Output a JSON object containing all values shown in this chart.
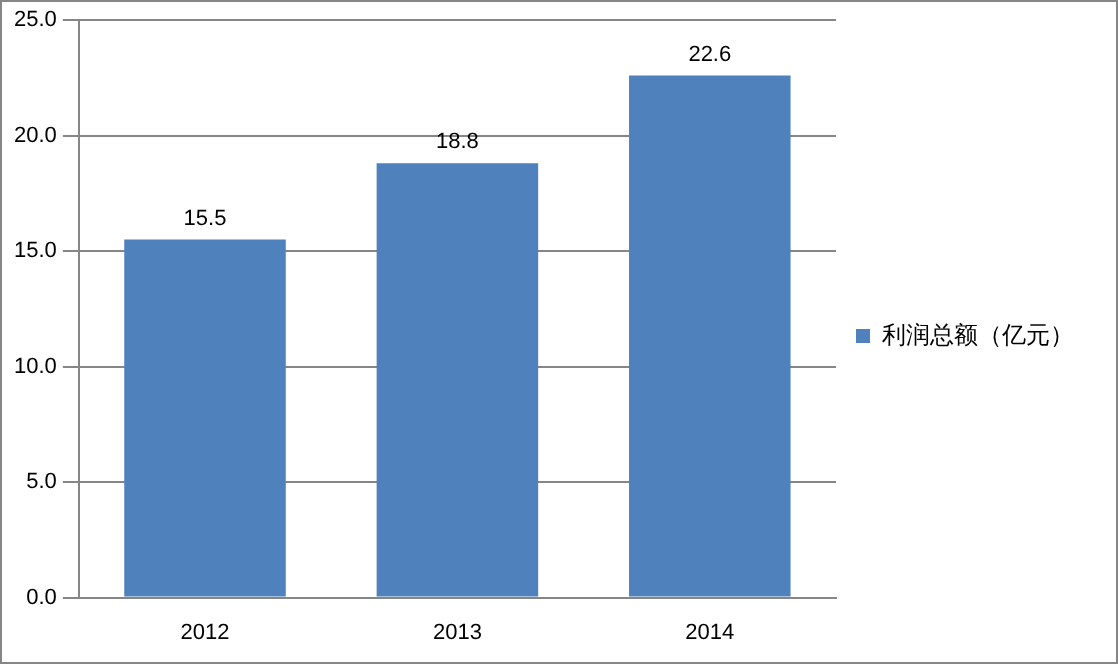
{
  "chart_data": {
    "type": "bar",
    "categories": [
      "2012",
      "2013",
      "2014"
    ],
    "series": [
      {
        "name": "利润总额（亿元）",
        "color": "#4f81bd",
        "values": [
          15.5,
          18.8,
          22.6
        ]
      }
    ],
    "ylim": [
      0,
      25
    ],
    "yticks": [
      {
        "value": 0,
        "label": "0.0"
      },
      {
        "value": 5,
        "label": "5.0"
      },
      {
        "value": 10,
        "label": "10.0"
      },
      {
        "value": 15,
        "label": "15.0"
      },
      {
        "value": 20,
        "label": "20.0"
      },
      {
        "value": 25,
        "label": "25.0"
      }
    ],
    "grid": "y",
    "legend": "right",
    "data_labels": true
  }
}
